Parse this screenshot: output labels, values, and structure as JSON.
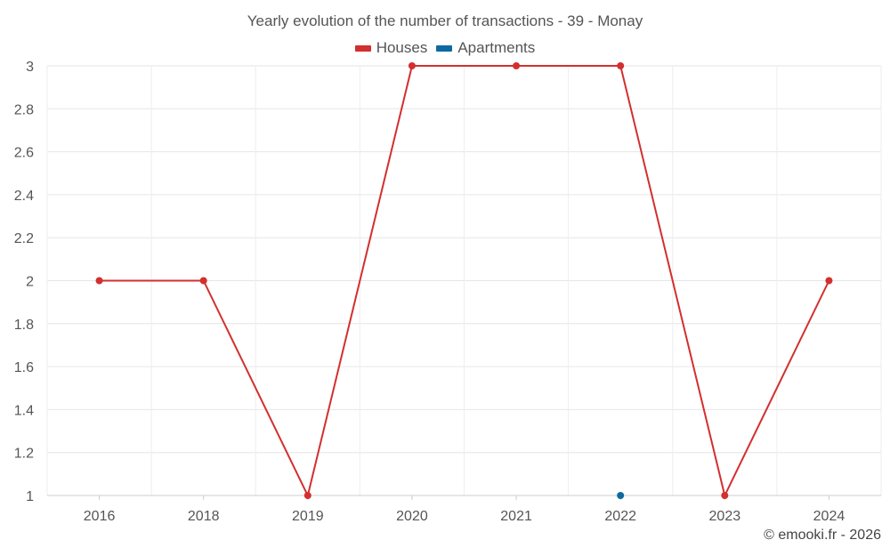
{
  "chart_data": {
    "type": "line",
    "title": "Yearly evolution of the number of transactions - 39 - Monay",
    "categories": [
      "2016",
      "2018",
      "2019",
      "2020",
      "2021",
      "2022",
      "2023",
      "2024"
    ],
    "ylim": [
      1,
      3
    ],
    "yticks": [
      "1",
      "1.2",
      "1.4",
      "1.6",
      "1.8",
      "2",
      "2.2",
      "2.4",
      "2.6",
      "2.8",
      "3"
    ],
    "grid": true,
    "legend_position": "top-center",
    "series": [
      {
        "name": "Houses",
        "color": "#d32f2f",
        "values": [
          2,
          2,
          1,
          3,
          3,
          3,
          1,
          2
        ]
      },
      {
        "name": "Apartments",
        "color": "#0d6aa0",
        "values": [
          null,
          null,
          null,
          null,
          null,
          1,
          null,
          null
        ]
      }
    ]
  },
  "credit": "© emooki.fr - 2026"
}
